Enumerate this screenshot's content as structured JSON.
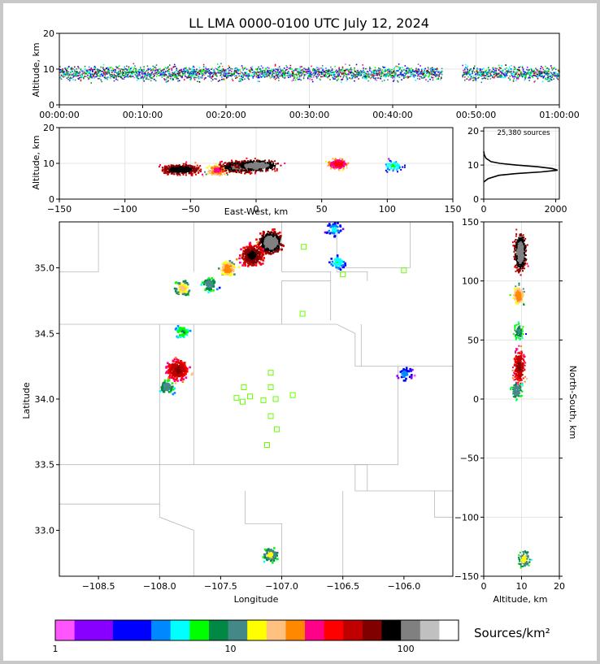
{
  "chart_data": {
    "type": "heatmap",
    "title": "LL LMA 0000-0100 UTC July 12, 2024",
    "time_altitude": {
      "xlabel": "",
      "ylabel": "Altitude, km",
      "xlim": [
        0,
        3600
      ],
      "ylim": [
        0,
        20
      ],
      "x_ticks": [
        "00:00:00",
        "00:10:00",
        "00:20:00",
        "00:30:00",
        "00:40:00",
        "00:50:00",
        "01:00:00"
      ],
      "y_ticks": [
        "0",
        "10",
        "20"
      ],
      "source_band_km": [
        6,
        12
      ]
    },
    "ew_altitude": {
      "xlabel": "East-West, km",
      "ylabel": "Altitude, km",
      "xlim": [
        -150,
        150
      ],
      "ylim": [
        0,
        20
      ],
      "x_ticks": [
        "−150",
        "−100",
        "−50",
        "0",
        "50",
        "100",
        "150"
      ],
      "y_ticks": [
        "0",
        "10",
        "20"
      ],
      "clusters": [
        {
          "x": -58,
          "z": 8.5,
          "density": 90
        },
        {
          "x": -30,
          "z": 8.3,
          "density": 30
        },
        {
          "x": -12,
          "z": 9.2,
          "density": 110
        },
        {
          "x": 0,
          "z": 9.6,
          "density": 120
        },
        {
          "x": 62,
          "z": 10,
          "density": 40
        },
        {
          "x": 104,
          "z": 9.5,
          "density": 6
        }
      ]
    },
    "altitude_histogram": {
      "annotation": "25,380 sources",
      "xlim": [
        0,
        2100
      ],
      "ylim": [
        0,
        21
      ],
      "x_ticks": [
        "0",
        "2000"
      ],
      "y_ticks": [
        "0",
        "10",
        "20"
      ],
      "profile": [
        {
          "alt": 5,
          "count": 0
        },
        {
          "alt": 6,
          "count": 120
        },
        {
          "alt": 7,
          "count": 420
        },
        {
          "alt": 7.5,
          "count": 900
        },
        {
          "alt": 8,
          "count": 1600
        },
        {
          "alt": 8.5,
          "count": 2050
        },
        {
          "alt": 9,
          "count": 1900
        },
        {
          "alt": 9.5,
          "count": 1500
        },
        {
          "alt": 10,
          "count": 900
        },
        {
          "alt": 10.5,
          "count": 450
        },
        {
          "alt": 11,
          "count": 200
        },
        {
          "alt": 12,
          "count": 60
        },
        {
          "alt": 13,
          "count": 15
        },
        {
          "alt": 14,
          "count": 0
        }
      ]
    },
    "plan_view": {
      "xlabel": "Longitude",
      "ylabel": "Latitude",
      "xlim": [
        -108.82,
        -105.6
      ],
      "ylim": [
        32.65,
        35.35
      ],
      "x_ticks": [
        "−108.5",
        "−108.0",
        "−107.5",
        "−107.0",
        "−106.5",
        "−106.0"
      ],
      "x_tick_values": [
        -108.5,
        -108.0,
        -107.5,
        -107.0,
        -106.5,
        -106.0
      ],
      "y_ticks": [
        "33.0",
        "33.5",
        "34.0",
        "34.5",
        "35.0"
      ],
      "y_tick_values": [
        33.0,
        33.5,
        34.0,
        34.5,
        35.0
      ],
      "clusters": [
        {
          "lon": -107.1,
          "lat": 35.2,
          "density": 120
        },
        {
          "lon": -107.25,
          "lat": 35.1,
          "density": 80
        },
        {
          "lon": -107.45,
          "lat": 35.0,
          "density": 25
        },
        {
          "lon": -107.6,
          "lat": 34.88,
          "density": 12
        },
        {
          "lon": -107.82,
          "lat": 34.85,
          "density": 18
        },
        {
          "lon": -107.82,
          "lat": 34.52,
          "density": 8
        },
        {
          "lon": -107.86,
          "lat": 34.23,
          "density": 60
        },
        {
          "lon": -107.95,
          "lat": 34.1,
          "density": 12
        },
        {
          "lon": -106.55,
          "lat": 35.05,
          "density": 6
        },
        {
          "lon": -106.58,
          "lat": 35.3,
          "density": 5
        },
        {
          "lon": -106.0,
          "lat": 34.2,
          "density": 4
        },
        {
          "lon": -107.1,
          "lat": 32.82,
          "density": 14
        }
      ],
      "stations": [
        [
          -106.82,
          35.16
        ],
        [
          -106.5,
          34.95
        ],
        [
          -106.0,
          34.98
        ],
        [
          -106.83,
          34.65
        ],
        [
          -107.09,
          34.2
        ],
        [
          -107.31,
          34.09
        ],
        [
          -107.09,
          34.09
        ],
        [
          -107.37,
          34.01
        ],
        [
          -107.26,
          34.02
        ],
        [
          -107.32,
          33.98
        ],
        [
          -107.15,
          33.99
        ],
        [
          -107.05,
          34.0
        ],
        [
          -106.91,
          34.03
        ],
        [
          -107.09,
          33.87
        ],
        [
          -107.04,
          33.77
        ],
        [
          -107.12,
          33.65
        ]
      ]
    },
    "ns_altitude": {
      "xlabel": "Altitude, km",
      "ylabel": "North-South, km",
      "xlim": [
        0,
        20
      ],
      "ylim": [
        -150,
        150
      ],
      "x_ticks": [
        "0",
        "10",
        "20"
      ],
      "y_ticks": [
        "−150",
        "−100",
        "−50",
        "0",
        "50",
        "100",
        "150"
      ],
      "clusters": [
        {
          "z": 9.5,
          "y": 125,
          "density": 120
        },
        {
          "z": 9.0,
          "y": 88,
          "density": 25
        },
        {
          "z": 9.0,
          "y": 58,
          "density": 10
        },
        {
          "z": 9.2,
          "y": 28,
          "density": 60
        },
        {
          "z": 8.5,
          "y": 8,
          "density": 12
        },
        {
          "z": 10.5,
          "y": -135,
          "density": 14
        }
      ]
    },
    "colorbar": {
      "label": "Sources/km²",
      "scale": "log",
      "range": [
        1,
        200
      ],
      "tick_labels": [
        "1",
        "10",
        "100"
      ],
      "colors": [
        "#ff55ff",
        "#8800ff",
        "#8800ff",
        "#0000ff",
        "#0000ff",
        "#0088ff",
        "#00ffff",
        "#00ff00",
        "#008844",
        "#448888",
        "#ffff00",
        "#ffc080",
        "#ff8800",
        "#ff0088",
        "#ff0000",
        "#c00000",
        "#800000",
        "#000000",
        "#808080",
        "#c0c0c0",
        "#ffffff"
      ]
    }
  }
}
